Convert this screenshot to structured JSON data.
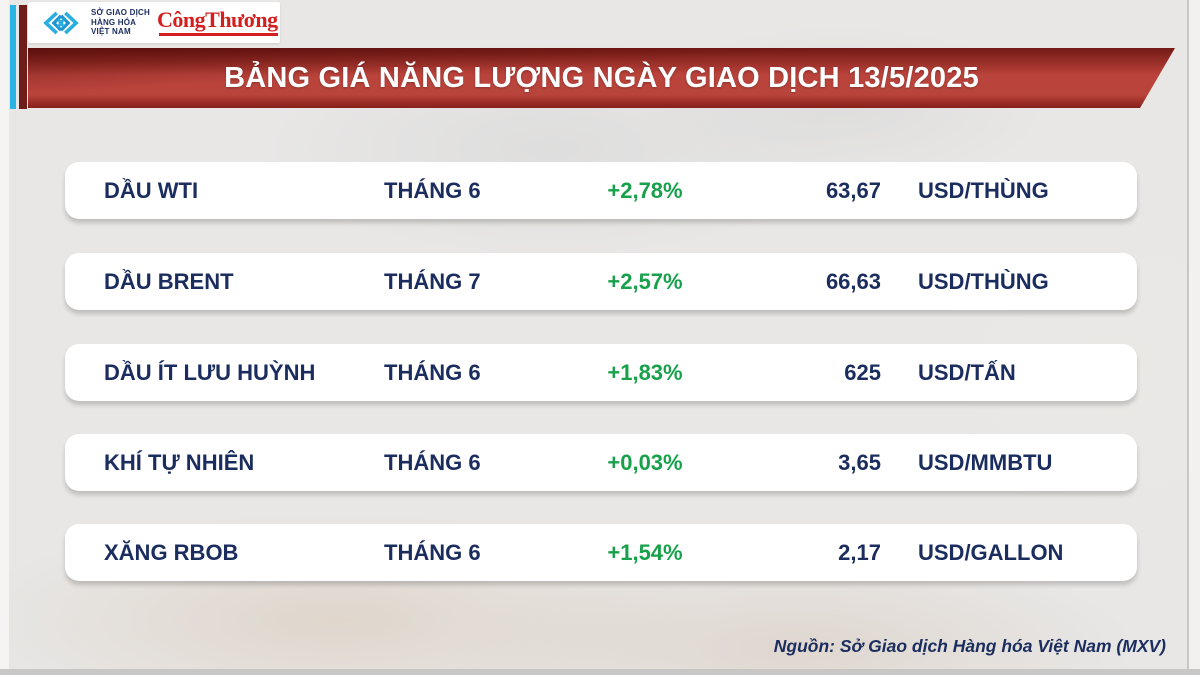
{
  "header": {
    "mxv_logo": {
      "icon": "mxv-diamond-chevrons-icon",
      "name_line1": "SỞ GIAO DỊCH",
      "name_line2": "HÀNG HÓA",
      "name_line3": "VIỆT NAM"
    },
    "congthuong_logo": "CôngThương",
    "title": "BẢNG GIÁ NĂNG LƯỢNG NGÀY GIAO DỊCH 13/5/2025"
  },
  "table": {
    "rows": [
      {
        "name": "DẦU WTI",
        "month": "THÁNG 6",
        "change": "+2,78%",
        "price": "63,67",
        "unit": "USD/THÙNG"
      },
      {
        "name": "DẦU BRENT",
        "month": "THÁNG 7",
        "change": "+2,57%",
        "price": "66,63",
        "unit": "USD/THÙNG"
      },
      {
        "name": "DẦU ÍT LƯU HUỲNH",
        "month": "THÁNG 6",
        "change": "+1,83%",
        "price": "625",
        "unit": "USD/TẤN"
      },
      {
        "name": "KHÍ TỰ NHIÊN",
        "month": "THÁNG 6",
        "change": "+0,03%",
        "price": "3,65",
        "unit": "USD/MMBTU"
      },
      {
        "name": "XĂNG RBOB",
        "month": "THÁNG 6",
        "change": "+1,54%",
        "price": "2,17",
        "unit": "USD/GALLON"
      }
    ]
  },
  "footer": {
    "source": "Nguồn: Sở Giao dịch Hàng hóa Việt Nam (MXV)"
  },
  "colors": {
    "banner_red": "#b5281f",
    "navy_text": "#1b2d5e",
    "positive_green": "#17a14b",
    "stripe_cyan": "#2ab4e4",
    "stripe_maroon": "#6e1d18",
    "congthuong_red": "#d31f1f",
    "background_gray": "#e8e7e6"
  },
  "chart_data": {
    "type": "table",
    "title": "BẢNG GIÁ NĂNG LƯỢNG NGÀY GIAO DỊCH 13/5/2025",
    "rows": [
      {
        "name": "DẦU WTI",
        "contract_month": "THÁNG 6",
        "change_pct": "+2,78%",
        "change_pct_value": 2.78,
        "price": "63,67",
        "price_value": 63.67,
        "unit": "USD/THÙNG"
      },
      {
        "name": "DẦU BRENT",
        "contract_month": "THÁNG 7",
        "change_pct": "+2,57%",
        "change_pct_value": 2.57,
        "price": "66,63",
        "price_value": 66.63,
        "unit": "USD/THÙNG"
      },
      {
        "name": "DẦU ÍT LƯU HUỲNH",
        "contract_month": "THÁNG 6",
        "change_pct": "+1,83%",
        "change_pct_value": 1.83,
        "price": "625",
        "price_value": 625,
        "unit": "USD/TẤN"
      },
      {
        "name": "KHÍ TỰ NHIÊN",
        "contract_month": "THÁNG 6",
        "change_pct": "+0,03%",
        "change_pct_value": 0.03,
        "price": "3,65",
        "price_value": 3.65,
        "unit": "USD/MMBTU"
      },
      {
        "name": "XĂNG RBOB",
        "contract_month": "THÁNG 6",
        "change_pct": "+1,54%",
        "change_pct_value": 1.54,
        "price": "2,17",
        "price_value": 2.17,
        "unit": "USD/GALLON"
      }
    ],
    "source": "Nguồn: Sở Giao dịch Hàng hóa Việt Nam (MXV)"
  }
}
